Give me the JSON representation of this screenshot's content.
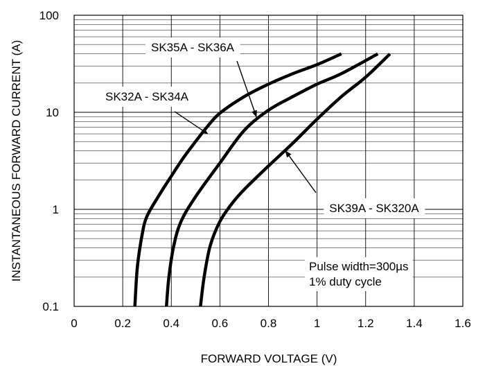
{
  "chart_data": {
    "type": "line",
    "title": "",
    "xlabel": "FORWARD VOLTAGE (V)",
    "ylabel": "INSTANTANEOUS FORWARD CURRENT (A)",
    "xlim": [
      0,
      1.6
    ],
    "ylim": [
      0.1,
      100
    ],
    "y_scale": "log",
    "grid": true,
    "x_ticks": [
      "0",
      "0.2",
      "0.4",
      "0.6",
      "0.8",
      "1",
      "1.2",
      "1.4",
      "1.6"
    ],
    "y_ticks": [
      "0.1",
      "1",
      "10",
      "100"
    ],
    "series": [
      {
        "name": "SK32A - SK34A",
        "x": [
          0.25,
          0.26,
          0.28,
          0.3,
          0.35,
          0.4,
          0.45,
          0.5,
          0.55,
          0.6,
          0.7,
          0.8,
          0.9,
          1.0,
          1.1
        ],
        "y": [
          0.1,
          0.25,
          0.55,
          0.85,
          1.4,
          2.2,
          3.4,
          5.0,
          7.2,
          9.8,
          14.5,
          19.5,
          25,
          31,
          40
        ]
      },
      {
        "name": "SK35A - SK36A",
        "x": [
          0.38,
          0.39,
          0.41,
          0.44,
          0.5,
          0.6,
          0.7,
          0.8,
          0.9,
          1.0,
          1.1,
          1.25
        ],
        "y": [
          0.1,
          0.2,
          0.42,
          0.75,
          1.35,
          3.0,
          6.5,
          10.5,
          14.5,
          19.5,
          25,
          40
        ]
      },
      {
        "name": "SK39A - SK320A",
        "x": [
          0.52,
          0.535,
          0.56,
          0.6,
          0.65,
          0.7,
          0.8,
          0.9,
          1.0,
          1.1,
          1.2,
          1.3
        ],
        "y": [
          0.1,
          0.2,
          0.42,
          0.75,
          1.15,
          1.6,
          2.8,
          4.8,
          8.5,
          14.5,
          23,
          40
        ]
      }
    ],
    "annotations": [
      {
        "text": "SK35A - SK36A",
        "arrow_to": [
          0.75,
          9.0
        ]
      },
      {
        "text": "SK32A - SK34A",
        "arrow_to": [
          0.55,
          6.0
        ]
      },
      {
        "text": "SK39A - SK320A",
        "arrow_to": [
          0.87,
          4.0
        ]
      }
    ],
    "note": [
      "Pulse width=300µs",
      "1% duty cycle"
    ]
  }
}
